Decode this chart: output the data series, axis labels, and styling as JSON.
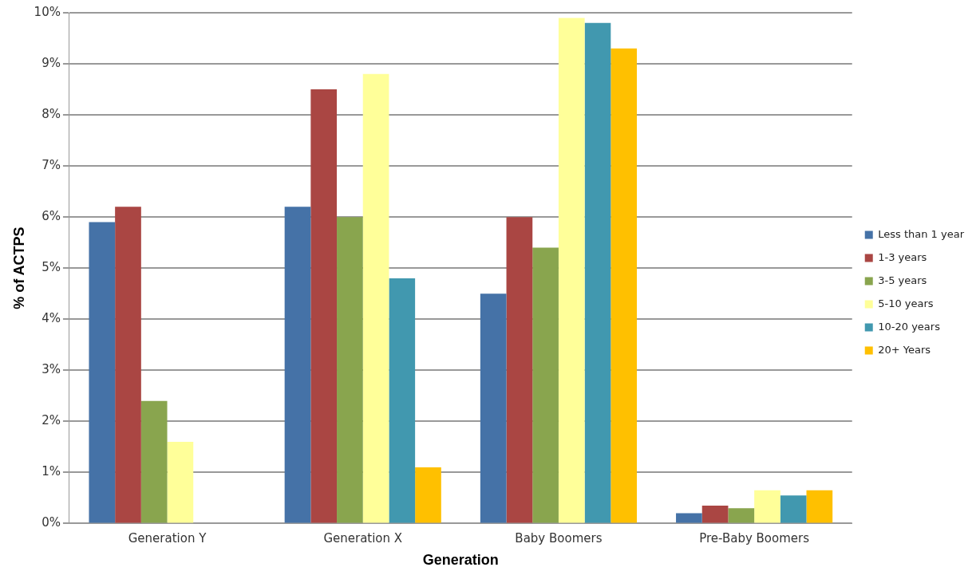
{
  "chart_data": {
    "type": "bar",
    "xlabel": "Generation",
    "ylabel": "% of ACTPS",
    "categories": [
      "Generation Y",
      "Generation X",
      "Baby Boomers",
      "Pre-Baby Boomers"
    ],
    "series": [
      {
        "name": "Less than 1 year",
        "color": "#4572a7",
        "values": [
          5.9,
          6.2,
          4.5,
          0.2
        ]
      },
      {
        "name": "1-3 years",
        "color": "#aa4643",
        "values": [
          6.2,
          8.5,
          6.0,
          0.35
        ]
      },
      {
        "name": "3-5 years",
        "color": "#89a54e",
        "values": [
          2.4,
          6.0,
          5.4,
          0.3
        ]
      },
      {
        "name": "5-10 years",
        "color": "#ffff99",
        "values": [
          1.6,
          8.8,
          9.9,
          0.65
        ]
      },
      {
        "name": "10-20 years",
        "color": "#4198af",
        "values": [
          0,
          4.8,
          9.8,
          0.55
        ]
      },
      {
        "name": "20+ Years",
        "color": "#ffc000",
        "values": [
          0,
          1.1,
          9.3,
          0.65
        ]
      }
    ],
    "ylim": [
      0,
      10
    ],
    "yticks": [
      {
        "value": 0,
        "label": "0%"
      },
      {
        "value": 1,
        "label": "1%"
      },
      {
        "value": 2,
        "label": "2%"
      },
      {
        "value": 3,
        "label": "3%"
      },
      {
        "value": 4,
        "label": "4%"
      },
      {
        "value": 5,
        "label": "5%"
      },
      {
        "value": 6,
        "label": "6%"
      },
      {
        "value": 7,
        "label": "7%"
      },
      {
        "value": 8,
        "label": "8%"
      },
      {
        "value": 9,
        "label": "9%"
      },
      {
        "value": 10,
        "label": "10%"
      }
    ],
    "grid": "y",
    "legend": "right"
  }
}
